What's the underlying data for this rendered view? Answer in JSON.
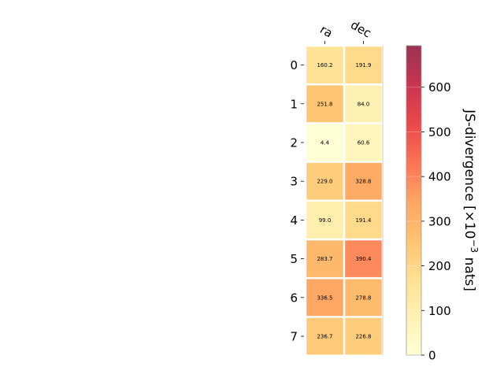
{
  "chart_data": {
    "type": "heatmap",
    "columns": [
      "ra",
      "dec"
    ],
    "rows": [
      "0",
      "1",
      "2",
      "3",
      "4",
      "5",
      "6",
      "7"
    ],
    "values": [
      [
        160.2,
        191.9
      ],
      [
        251.8,
        84.0
      ],
      [
        4.4,
        60.6
      ],
      [
        229.0,
        328.8
      ],
      [
        99.0,
        191.4
      ],
      [
        283.7,
        390.4
      ],
      [
        336.5,
        278.8
      ],
      [
        236.7,
        226.8
      ]
    ],
    "cell_labels": [
      [
        "160.2",
        "191.9"
      ],
      [
        "251.8",
        "84.0"
      ],
      [
        "4.4",
        "60.6"
      ],
      [
        "229.0",
        "328.8"
      ],
      [
        "99.0",
        "191.4"
      ],
      [
        "283.7",
        "390.4"
      ],
      [
        "336.5",
        "278.8"
      ],
      [
        "236.7",
        "226.8"
      ]
    ],
    "colorbar": {
      "label_main": "JS-divergence [×10",
      "label_exp": "−3",
      "label_unit": " nats]",
      "vmin": 0,
      "vmax": 693,
      "ticks": [
        "0",
        "100",
        "200",
        "300",
        "400",
        "500",
        "600"
      ],
      "colormap": "YlOrRd",
      "label_text_threshold": 200
    }
  }
}
